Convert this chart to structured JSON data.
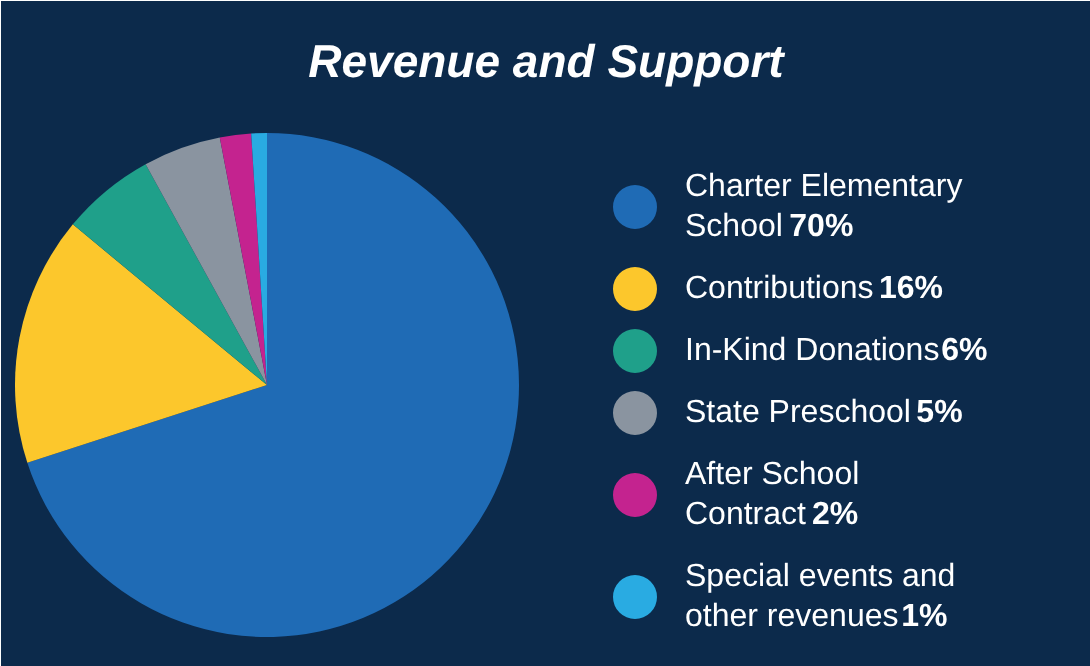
{
  "chart_data": {
    "type": "pie",
    "title": "Revenue and Support",
    "categories": [
      "Charter Elementary School",
      "Contributions",
      "In-Kind Donations",
      "State Preschool",
      "After School Contract",
      "Special events and other revenues"
    ],
    "values": [
      70,
      16,
      6,
      5,
      2,
      1
    ],
    "value_labels": [
      "70%",
      "16%",
      "6%",
      "5%",
      "2%",
      "1%"
    ],
    "colors": [
      "#1f6bb5",
      "#fcc72c",
      "#1fa08a",
      "#8a94a0",
      "#c4238f",
      "#29abe2"
    ],
    "legend": "right"
  }
}
